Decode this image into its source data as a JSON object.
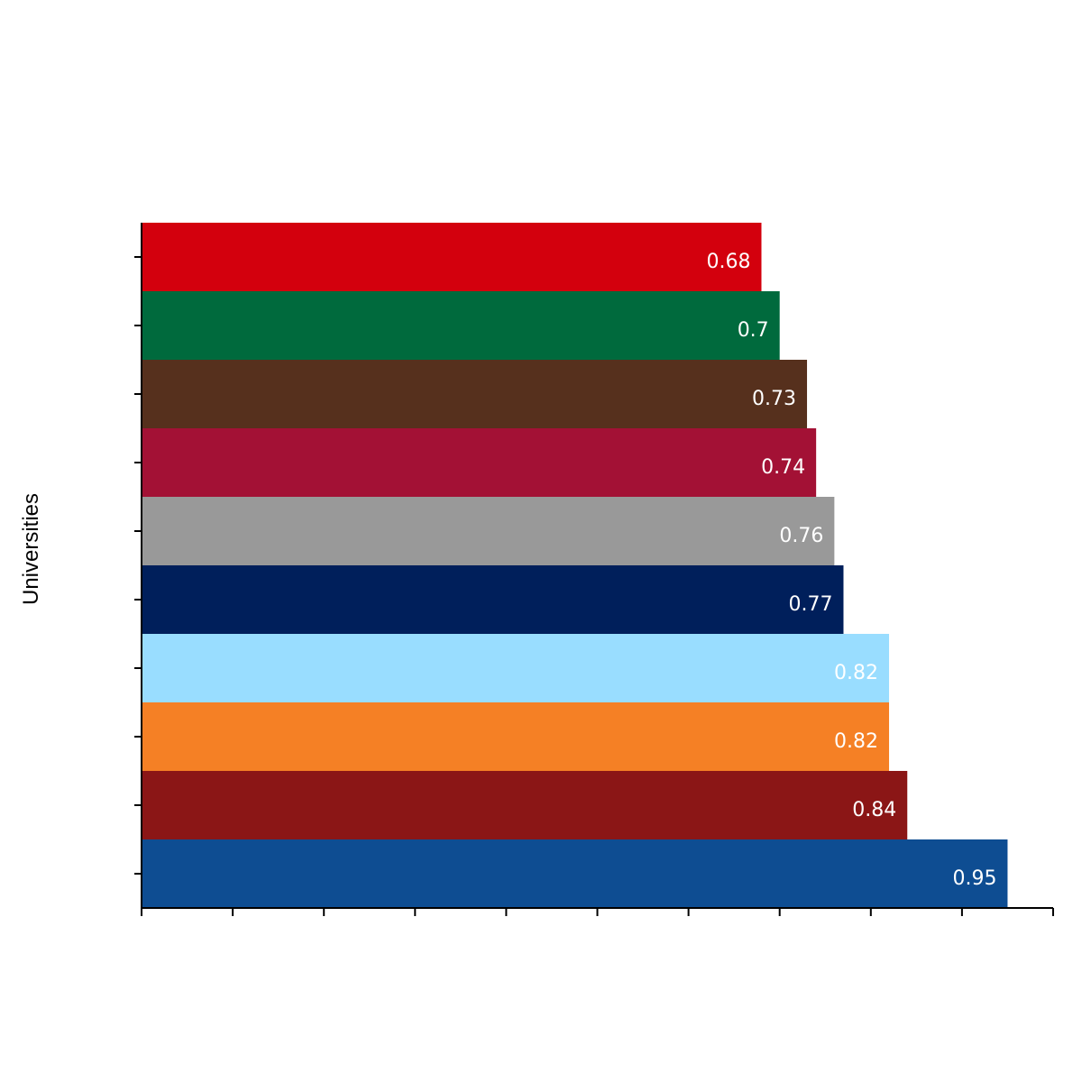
{
  "chart_data": {
    "type": "bar",
    "orientation": "horizontal",
    "title": "",
    "xlabel": "",
    "ylabel": "Universities",
    "xlim": [
      0,
      1
    ],
    "x_tick_labels_shown": false,
    "y_tick_labels_shown": false,
    "grid": false,
    "legend": "none",
    "categories": [
      "",
      "",
      "",
      "",
      "",
      "",
      "",
      "",
      "",
      ""
    ],
    "values": [
      0.68,
      0.7,
      0.73,
      0.74,
      0.76,
      0.77,
      0.82,
      0.82,
      0.84,
      0.95
    ],
    "data_labels": [
      "0.68",
      "0.7",
      "0.73",
      "0.74",
      "0.76",
      "0.77",
      "0.82",
      "0.82",
      "0.84",
      "0.95"
    ],
    "colors": [
      "#d3000d",
      "#006a3d",
      "#56301d",
      "#a31135",
      "#999999",
      "#001f5b",
      "#99ddff",
      "#f58025",
      "#8b1616",
      "#0e4d92"
    ]
  }
}
